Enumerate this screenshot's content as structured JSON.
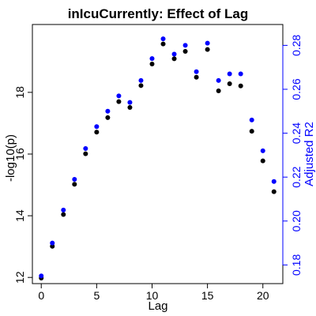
{
  "chart_data": {
    "type": "scatter",
    "title": "inIcuCurrently: Effect of Lag",
    "xlabel": "Lag",
    "ylabel": "-log10(p)",
    "ylabel_right": "Adjusted R2",
    "xlim": [
      -0.8,
      21.8
    ],
    "ylim": [
      11.8,
      20.2
    ],
    "ylim_right": [
      0.1715,
      0.2895
    ],
    "x_ticks": [
      0,
      5,
      10,
      15,
      20
    ],
    "y_ticks": [
      12,
      14,
      16,
      18
    ],
    "y_ticks_right": [
      0.18,
      0.2,
      0.22,
      0.24,
      0.26,
      0.28
    ],
    "y_ticks_right_labels": [
      "0.18",
      "0.20",
      "0.22",
      "0.24",
      "0.26",
      "0.28"
    ],
    "left_axis_color": "#000000",
    "right_axis_color": "#0000ff",
    "series": [
      {
        "color": "#000000",
        "axis": "left",
        "x": [
          0,
          1,
          2,
          3,
          4,
          5,
          6,
          7,
          8,
          9,
          10,
          11,
          12,
          13,
          14,
          15,
          16,
          17,
          18,
          19,
          20,
          21
        ],
        "values": [
          11.98,
          13.01,
          14.04,
          15.02,
          16.01,
          16.71,
          17.18,
          17.7,
          17.51,
          18.22,
          18.92,
          19.57,
          19.09,
          19.33,
          18.49,
          19.39,
          18.05,
          18.28,
          18.21,
          16.74,
          15.78,
          14.78
        ]
      },
      {
        "color": "#0000ff",
        "axis": "right",
        "x": [
          0,
          1,
          2,
          3,
          4,
          5,
          6,
          7,
          8,
          9,
          10,
          11,
          12,
          13,
          14,
          15,
          16,
          17,
          18,
          19,
          20,
          21
        ],
        "values": [
          0.175,
          0.19,
          0.205,
          0.219,
          0.233,
          0.243,
          0.25,
          0.257,
          0.254,
          0.264,
          0.274,
          0.283,
          0.276,
          0.28,
          0.268,
          0.281,
          0.264,
          0.267,
          0.267,
          0.246,
          0.232,
          0.218
        ]
      }
    ]
  }
}
